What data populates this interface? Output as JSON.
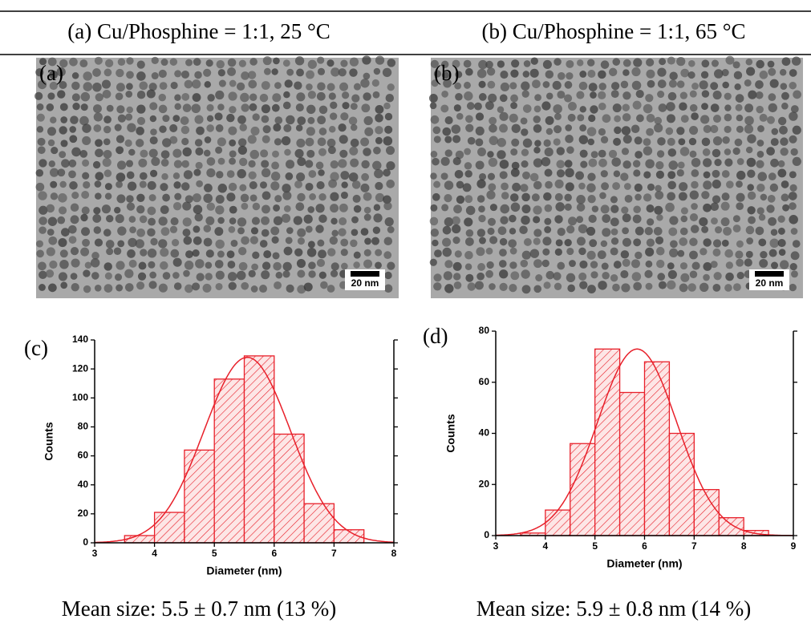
{
  "header": [
    "(a)  Cu/Phosphine = 1:1, 25 °C",
    "(b)  Cu/Phosphine = 1:1, 65 °C"
  ],
  "images": [
    {
      "label": "(a)",
      "scale": "20 nm"
    },
    {
      "label": "(b)",
      "scale": "20 nm"
    }
  ],
  "chart_data": [
    {
      "type": "histogram",
      "panel_label": "(c)",
      "xlabel": "Diameter (nm)",
      "ylabel": "Counts",
      "color": "#e8202a",
      "bins": [
        3.5,
        4,
        4.5,
        5,
        5.5,
        6,
        6.5,
        7,
        7.5
      ],
      "values": [
        5,
        21,
        64,
        113,
        129,
        75,
        27,
        9
      ],
      "xlim": [
        3,
        8
      ],
      "ylim": [
        0,
        140
      ],
      "xticks": [
        3,
        4,
        5,
        6,
        7,
        8
      ],
      "yticks": [
        0,
        20,
        40,
        60,
        80,
        100,
        120,
        140
      ],
      "fit": {
        "center": 5.55,
        "sigma": 0.72,
        "amplitude": 128
      }
    },
    {
      "type": "histogram",
      "panel_label": "(d)",
      "xlabel": "Diameter (nm)",
      "ylabel": "Counts",
      "color": "#e8202a",
      "bins": [
        3.5,
        4,
        4.5,
        5,
        5.5,
        6,
        6.5,
        7,
        7.5,
        8,
        8.5
      ],
      "values": [
        1,
        10,
        36,
        73,
        56,
        68,
        40,
        18,
        7,
        2
      ],
      "xlim": [
        3,
        9
      ],
      "ylim": [
        0,
        80
      ],
      "xticks": [
        3,
        4,
        5,
        6,
        7,
        8,
        9
      ],
      "yticks": [
        0,
        20,
        40,
        60,
        80
      ],
      "fit": {
        "center": 5.85,
        "sigma": 0.8,
        "amplitude": 73
      }
    }
  ],
  "captions": [
    "Mean size: 5.5 ± 0.7 nm (13 %)",
    "Mean size: 5.9 ± 0.8 nm (14 %)"
  ]
}
